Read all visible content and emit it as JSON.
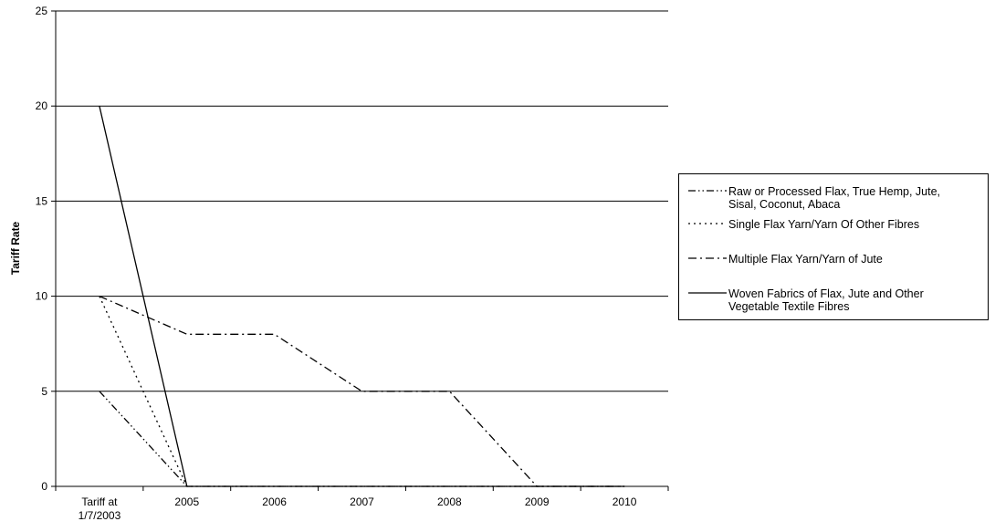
{
  "chart_data": {
    "type": "line",
    "title": "",
    "xlabel": "",
    "ylabel": "Tariff Rate",
    "ylim": [
      0,
      25
    ],
    "yticks": [
      0,
      5,
      10,
      15,
      20,
      25
    ],
    "grid": true,
    "legend_position": "right",
    "categories": [
      {
        "line1": "Tariff at",
        "line2": "1/7/2003"
      },
      {
        "line1": "2005",
        "line2": ""
      },
      {
        "line1": "2006",
        "line2": ""
      },
      {
        "line1": "2007",
        "line2": ""
      },
      {
        "line1": "2008",
        "line2": ""
      },
      {
        "line1": "2009",
        "line2": ""
      },
      {
        "line1": "2010",
        "line2": ""
      }
    ],
    "series": [
      {
        "name_lines": [
          "Raw or Processed Flax, True Hemp, Jute,",
          "Sisal, Coconut, Abaca"
        ],
        "values": [
          5,
          0,
          0,
          0,
          0,
          0,
          0
        ],
        "dash": "dash-dot-dot"
      },
      {
        "name_lines": [
          "Single Flax Yarn/Yarn Of Other Fibres"
        ],
        "values": [
          10,
          0,
          0,
          0,
          0,
          0,
          0
        ],
        "dash": "dotted"
      },
      {
        "name_lines": [
          "Multiple Flax Yarn/Yarn of Jute"
        ],
        "values": [
          10,
          8,
          8,
          5,
          5,
          0,
          0
        ],
        "dash": "dash-dot"
      },
      {
        "name_lines": [
          "Woven Fabrics of Flax, Jute and Other",
          "Vegetable Textile Fibres"
        ],
        "values": [
          20,
          0,
          0,
          0,
          0,
          0,
          0
        ],
        "dash": "solid"
      }
    ],
    "color": "#000000"
  }
}
